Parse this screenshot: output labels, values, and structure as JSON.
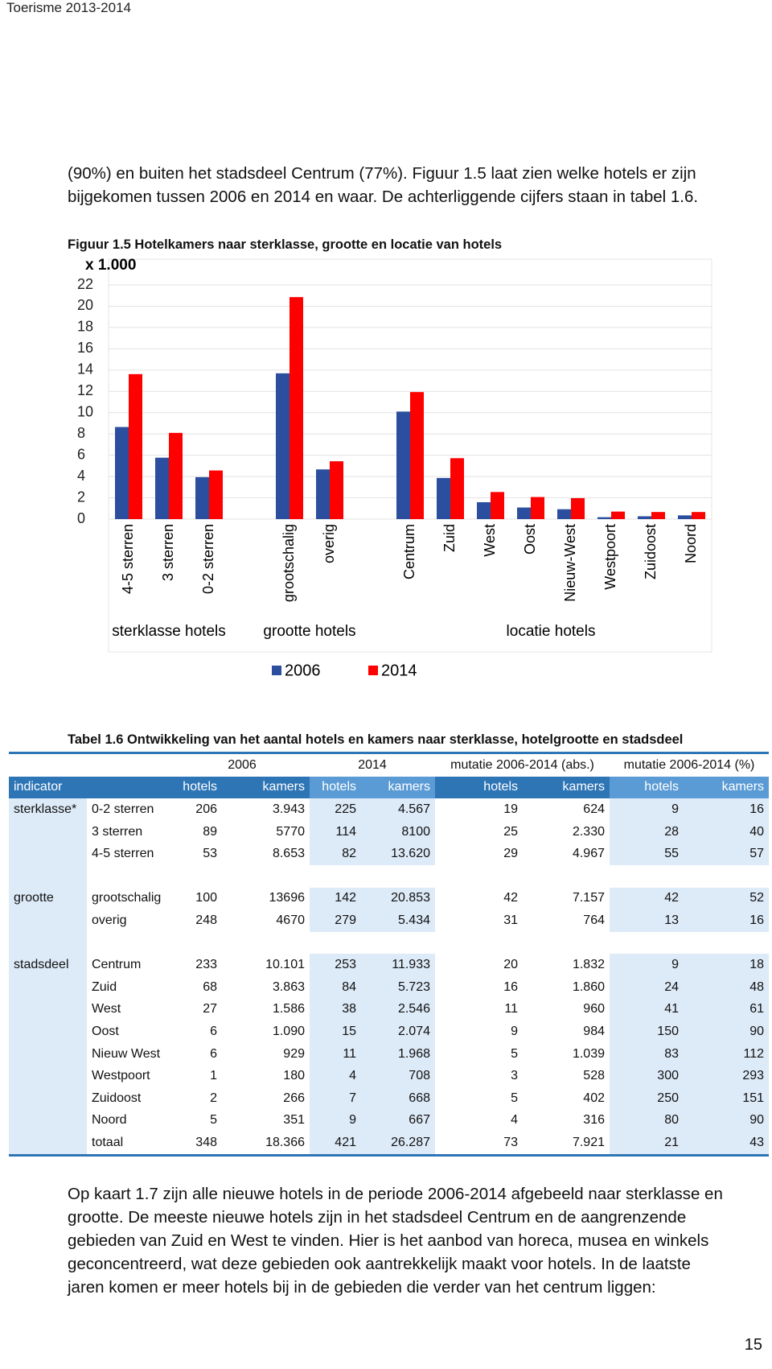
{
  "header": "Toerisme 2013-2014",
  "paragraph_1": [
    "(90%) en buiten het stadsdeel Centrum (77%). Figuur 1.5 laat zien welke hotels er zijn",
    "bijgekomen tussen 2006 en 2014 en waar. De achterliggende cijfers staan in tabel 1.6."
  ],
  "figure_caption": "Figuur 1.5 Hotelkamers naar sterklasse, grootte en locatie van hotels",
  "chart_data": {
    "type": "bar",
    "y_unit_label": "x 1.000",
    "categories": [
      "4-5 sterren",
      "3 sterren",
      "0-2 sterren",
      null,
      "grootschalig",
      "overig",
      null,
      "Centrum",
      "Zuid",
      "West",
      "Oost",
      "Nieuw-West",
      "Westpoort",
      "Zuidoost",
      "Noord"
    ],
    "group_labels": [
      "sterklasse hotels",
      "grootte hotels",
      "locatie hotels"
    ],
    "series": [
      {
        "name": "2006",
        "color": "#2b4f9e",
        "values": [
          8.653,
          5.77,
          3.943,
          null,
          13.696,
          4.67,
          null,
          10.101,
          3.863,
          1.586,
          1.09,
          0.929,
          0.18,
          0.266,
          0.351
        ]
      },
      {
        "name": "2014",
        "color": "#ff0000",
        "values": [
          13.62,
          8.1,
          4.567,
          null,
          20.853,
          5.434,
          null,
          11.933,
          5.723,
          2.546,
          2.074,
          1.968,
          0.708,
          0.668,
          0.667
        ]
      }
    ],
    "ylim": [
      0,
      22
    ],
    "yticks": [
      0,
      2,
      4,
      6,
      8,
      10,
      12,
      14,
      16,
      18,
      20,
      22
    ],
    "grid": true,
    "legend": "bottom"
  },
  "table": {
    "title": "Tabel 1.6 Ontwikkeling van het aantal hotels en kamers naar sterklasse, hotelgrootte en stadsdeel",
    "header_top": [
      "2006",
      "2014",
      "mutatie 2006-2014 (abs.)",
      "mutatie 2006-2014 (%)"
    ],
    "header_indicator": "indicator",
    "header_sub": [
      "hotels",
      "kamers",
      "hotels",
      "kamers",
      "hotels",
      "kamers",
      "hotels",
      "kamers"
    ],
    "groups": [
      {
        "indicator": "sterklasse*",
        "rows": [
          [
            "0-2 sterren",
            "206",
            "3.943",
            "225",
            "4.567",
            "19",
            "624",
            "9",
            "16"
          ],
          [
            "3 sterren",
            "89",
            "5770",
            "114",
            "8100",
            "25",
            "2.330",
            "28",
            "40"
          ],
          [
            "4-5 sterren",
            "53",
            "8.653",
            "82",
            "13.620",
            "29",
            "4.967",
            "55",
            "57"
          ]
        ]
      },
      {
        "indicator": "grootte",
        "rows": [
          [
            "grootschalig",
            "100",
            "13696",
            "142",
            "20.853",
            "42",
            "7.157",
            "42",
            "52"
          ],
          [
            "overig",
            "248",
            "4670",
            "279",
            "5.434",
            "31",
            "764",
            "13",
            "16"
          ]
        ]
      },
      {
        "indicator": "stadsdeel",
        "rows": [
          [
            "Centrum",
            "233",
            "10.101",
            "253",
            "11.933",
            "20",
            "1.832",
            "9",
            "18"
          ],
          [
            "Zuid",
            "68",
            "3.863",
            "84",
            "5.723",
            "16",
            "1.860",
            "24",
            "48"
          ],
          [
            "West",
            "27",
            "1.586",
            "38",
            "2.546",
            "11",
            "960",
            "41",
            "61"
          ],
          [
            "Oost",
            "6",
            "1.090",
            "15",
            "2.074",
            "9",
            "984",
            "150",
            "90"
          ],
          [
            "Nieuw West",
            "6",
            "929",
            "11",
            "1.968",
            "5",
            "1.039",
            "83",
            "112"
          ],
          [
            "Westpoort",
            "1",
            "180",
            "4",
            "708",
            "3",
            "528",
            "300",
            "293"
          ],
          [
            "Zuidoost",
            "2",
            "266",
            "7",
            "668",
            "5",
            "402",
            "250",
            "151"
          ],
          [
            "Noord",
            "5",
            "351",
            "9",
            "667",
            "4",
            "316",
            "80",
            "90"
          ]
        ]
      }
    ],
    "total": [
      "totaal",
      "348",
      "18.366",
      "421",
      "26.287",
      "73",
      "7.921",
      "21",
      "43"
    ]
  },
  "paragraph_2": [
    "Op kaart 1.7 zijn alle nieuwe hotels in de periode 2006-2014 afgebeeld naar sterklasse en",
    "grootte. De meeste nieuwe hotels zijn in het stadsdeel Centrum en de aangrenzende",
    "gebieden van Zuid en West te vinden. Hier is het aanbod van horeca, musea en winkels",
    "geconcentreerd, wat deze gebieden ook aantrekkelijk maakt voor hotels. In de laatste",
    "jaren komen er meer hotels bij in de gebieden die verder van het centrum liggen:"
  ],
  "page_number": "15"
}
